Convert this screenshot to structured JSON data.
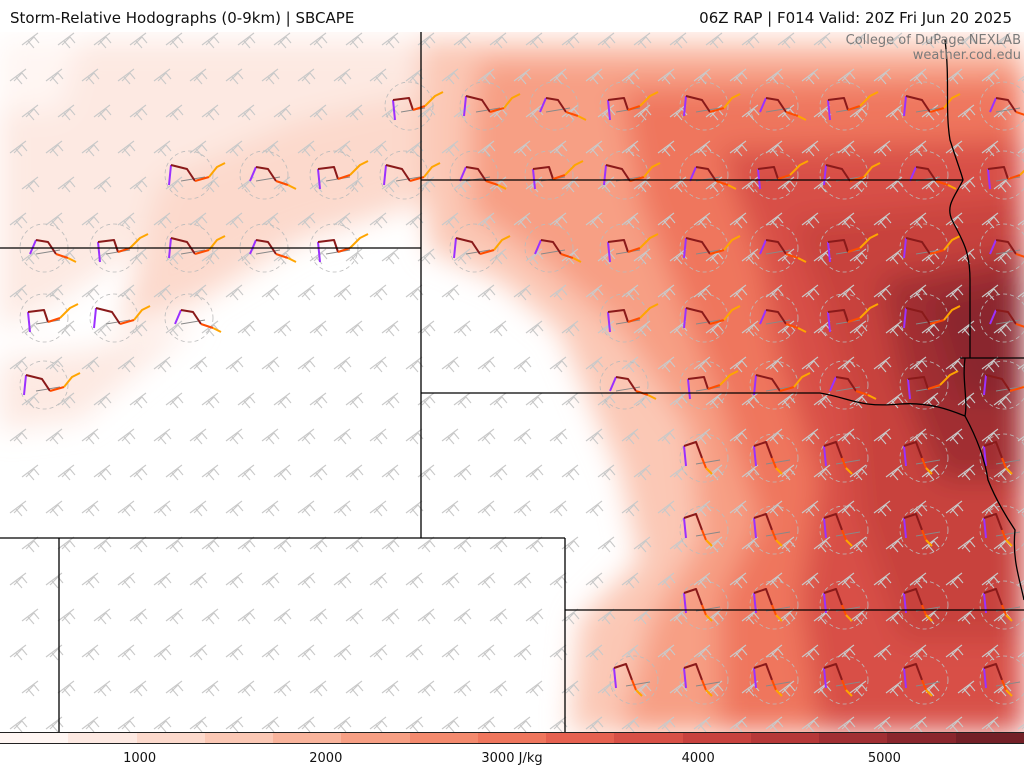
{
  "header": {
    "title_left": "Storm-Relative Hodographs (0-9km) | SBCAPE",
    "title_right": "06Z RAP | F014 Valid: 20Z Fri Jun 20 2025"
  },
  "credit": {
    "line1": "College of DuPage NEXLAB",
    "line2": "weather.cod.edu"
  },
  "colorbar": {
    "colors": [
      "#fff6f3",
      "#fde9e2",
      "#fcd9cc",
      "#fbc8b5",
      "#f9b49c",
      "#f79f84",
      "#f48a6e",
      "#ef765d",
      "#e66150",
      "#d85046",
      "#c8423e",
      "#b63838",
      "#a12f33",
      "#8a262d",
      "#732027"
    ],
    "labels": [
      {
        "text": "1000",
        "value": 1000
      },
      {
        "text": "2000",
        "value": 2000
      },
      {
        "text": "3000 J/kg",
        "value": 3000
      },
      {
        "text": "4000",
        "value": 4000
      },
      {
        "text": "5000",
        "value": 5000
      }
    ],
    "range": [
      250,
      5750
    ],
    "unit": "J/kg"
  },
  "map": {
    "field": "SBCAPE",
    "overlay": "Storm-Relative Hodographs (0-9km)",
    "hodograph_colors": {
      "layer_0_3km": "#8a1a1a",
      "layer_3_6km": "#ff4d00",
      "layer_6_9km": "#ffa500",
      "surface_hook": "#9b30ff"
    }
  }
}
